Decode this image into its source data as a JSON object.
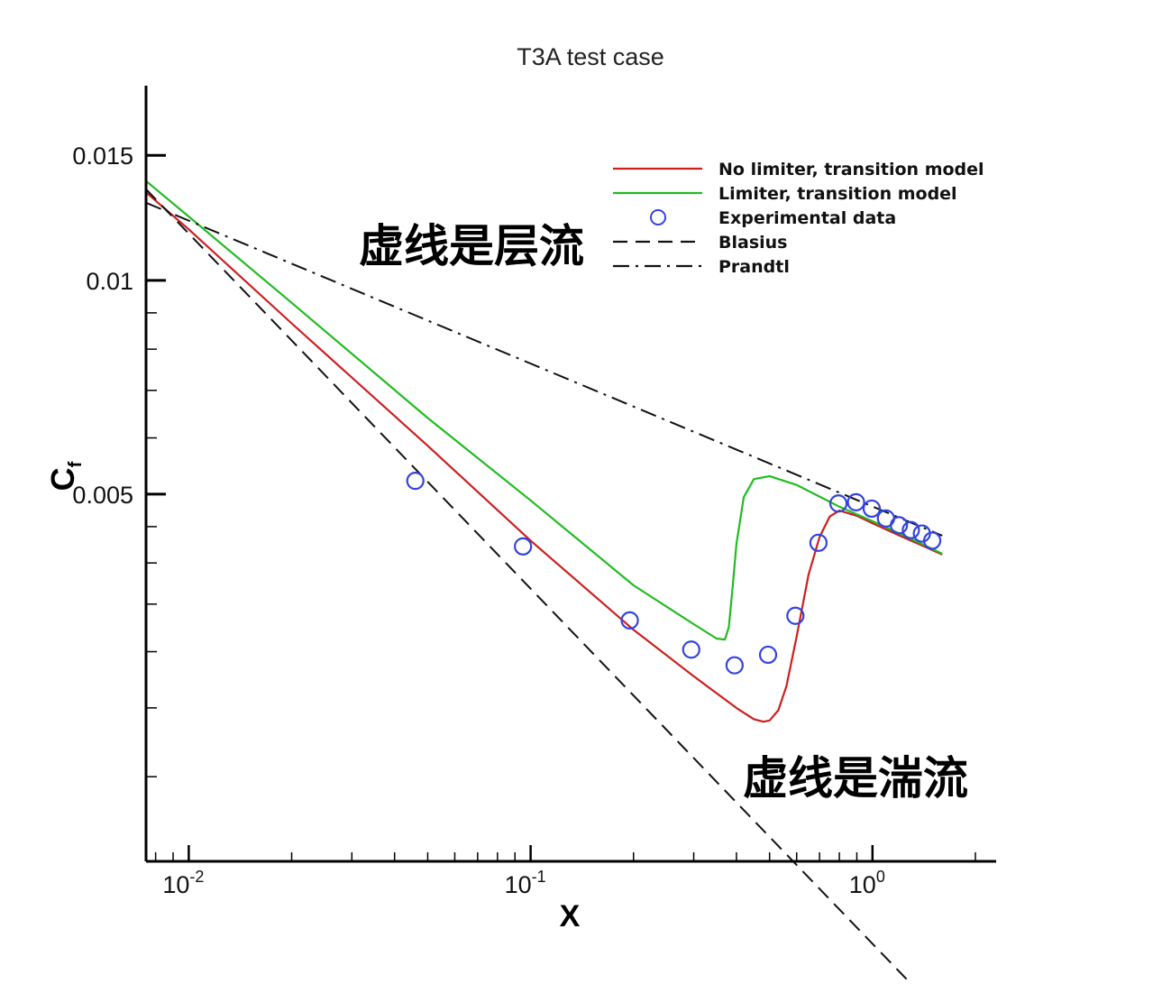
{
  "chart_data": {
    "type": "line",
    "title": "T3A test case",
    "xlabel": "X",
    "ylabel": "C",
    "ylabel_sub": "f",
    "xscale": "log",
    "yscale": "log",
    "xlim": [
      0.0075,
      2.3
    ],
    "ylim": [
      0.00152,
      0.0188
    ],
    "x_ticks": [
      {
        "value": 0.01,
        "base": "10",
        "exp": "-2"
      },
      {
        "value": 0.1,
        "base": "10",
        "exp": "-1"
      },
      {
        "value": 1,
        "base": "10",
        "exp": "0"
      }
    ],
    "y_ticks": [
      {
        "value": 0.005,
        "label": "0.005"
      },
      {
        "value": 0.01,
        "label": "0.01"
      },
      {
        "value": 0.015,
        "label": "0.015"
      }
    ],
    "legend_position": "top-right",
    "series": [
      {
        "name": "No limiter, transition model",
        "color": "#cc1f1f",
        "style": "solid",
        "x": [
          0.0075,
          0.01,
          0.02,
          0.05,
          0.1,
          0.2,
          0.3,
          0.4,
          0.45,
          0.48,
          0.5,
          0.53,
          0.56,
          0.6,
          0.65,
          0.7,
          0.75,
          0.8,
          0.9,
          1.0,
          1.2,
          1.4,
          1.6
        ],
        "y": [
          0.0133,
          0.0118,
          0.0087,
          0.00585,
          0.0043,
          0.00322,
          0.00277,
          0.0025,
          0.00241,
          0.00239,
          0.0024,
          0.00248,
          0.00268,
          0.00315,
          0.00385,
          0.00435,
          0.00465,
          0.00474,
          0.00466,
          0.00455,
          0.00437,
          0.00423,
          0.00411
        ]
      },
      {
        "name": "Limiter, transition model",
        "color": "#22bb22",
        "style": "solid",
        "x": [
          0.0075,
          0.01,
          0.02,
          0.05,
          0.1,
          0.2,
          0.3,
          0.35,
          0.37,
          0.38,
          0.39,
          0.4,
          0.42,
          0.45,
          0.5,
          0.6,
          0.8,
          1.0,
          1.2,
          1.4,
          1.6
        ],
        "y": [
          0.0138,
          0.0123,
          0.0093,
          0.0064,
          0.0049,
          0.00372,
          0.00328,
          0.00313,
          0.00312,
          0.00325,
          0.0037,
          0.00425,
          0.00495,
          0.00525,
          0.0053,
          0.00515,
          0.0048,
          0.00458,
          0.0044,
          0.00425,
          0.00412
        ]
      },
      {
        "name": "Experimental data",
        "color": "#3344dd",
        "style": "markers",
        "x": [
          0.046,
          0.095,
          0.195,
          0.295,
          0.395,
          0.495,
          0.595,
          0.695,
          0.795,
          0.895,
          0.995,
          1.095,
          1.195,
          1.295,
          1.395,
          1.495
        ],
        "y": [
          0.00522,
          0.00422,
          0.00332,
          0.00302,
          0.00287,
          0.00297,
          0.00337,
          0.00427,
          0.00485,
          0.00487,
          0.00477,
          0.00462,
          0.00452,
          0.00445,
          0.0044,
          0.0043
        ]
      },
      {
        "name": "Blasius",
        "color": "#111111",
        "style": "dashed",
        "x": [
          0.0075,
          1.6
        ],
        "y": [
          0.01344,
          0.00092
        ]
      },
      {
        "name": "Prandtl",
        "color": "#111111",
        "style": "dashdot",
        "x": [
          0.0075,
          1.6
        ],
        "y": [
          0.01286,
          0.00437
        ]
      }
    ],
    "annotations": [
      {
        "text": "虚线是层流"
      },
      {
        "text": "虚线是湍流"
      }
    ]
  }
}
